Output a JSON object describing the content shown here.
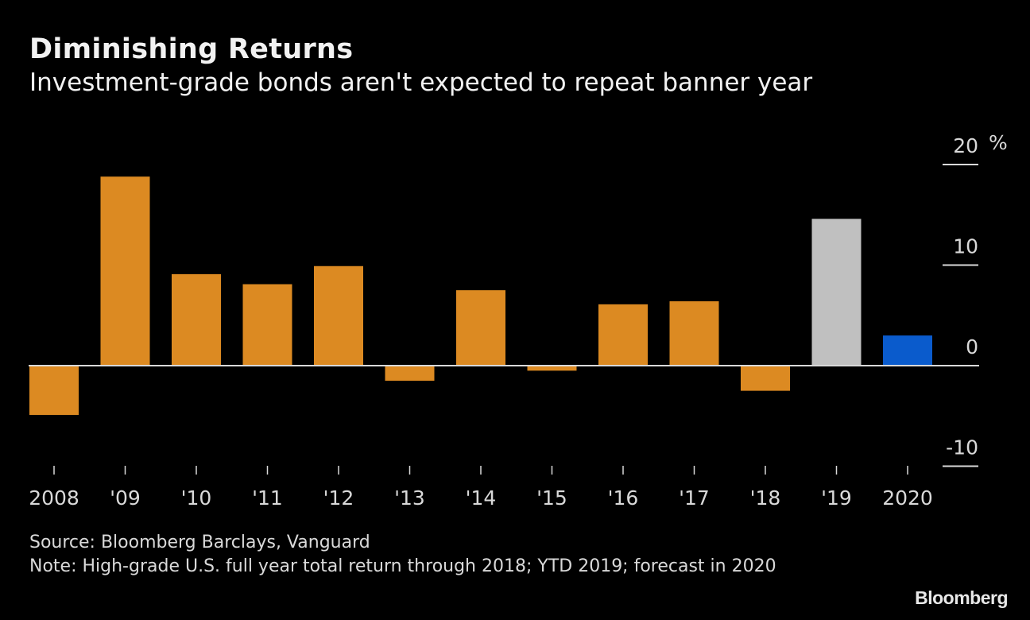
{
  "header": {
    "title": "Diminishing Returns",
    "subtitle": "Investment-grade bonds aren't expected to repeat banner year"
  },
  "footer": {
    "source": "Source: Bloomberg Barclays, Vanguard",
    "note": "Note: High-grade U.S. full year total return through 2018; YTD 2019; forecast in 2020",
    "brand": "Bloomberg"
  },
  "colors": {
    "actual": "#dc8a22",
    "ytd": "#c0c0c0",
    "forecast": "#0a5bcc",
    "baseline": "#d9d9d9"
  },
  "chart_data": {
    "type": "bar",
    "title": "Diminishing Returns",
    "subtitle": "Investment-grade bonds aren't expected to repeat banner year",
    "xlabel": "",
    "ylabel": "%",
    "y_unit_label": "%",
    "ylim": [
      -10,
      20
    ],
    "yticks": [
      20,
      10,
      0,
      -10
    ],
    "y_axis_side": "right",
    "grid": false,
    "legend": "none",
    "categories": [
      "2008",
      "'09",
      "'10",
      "'11",
      "'12",
      "'13",
      "'14",
      "'15",
      "'16",
      "'17",
      "'18",
      "'19",
      "2020"
    ],
    "values": [
      -4.9,
      18.8,
      9.1,
      8.1,
      9.9,
      -1.5,
      7.5,
      -0.5,
      6.1,
      6.4,
      -2.5,
      14.6,
      3.0
    ],
    "bar_kind": [
      "actual",
      "actual",
      "actual",
      "actual",
      "actual",
      "actual",
      "actual",
      "actual",
      "actual",
      "actual",
      "actual",
      "ytd",
      "forecast"
    ]
  }
}
